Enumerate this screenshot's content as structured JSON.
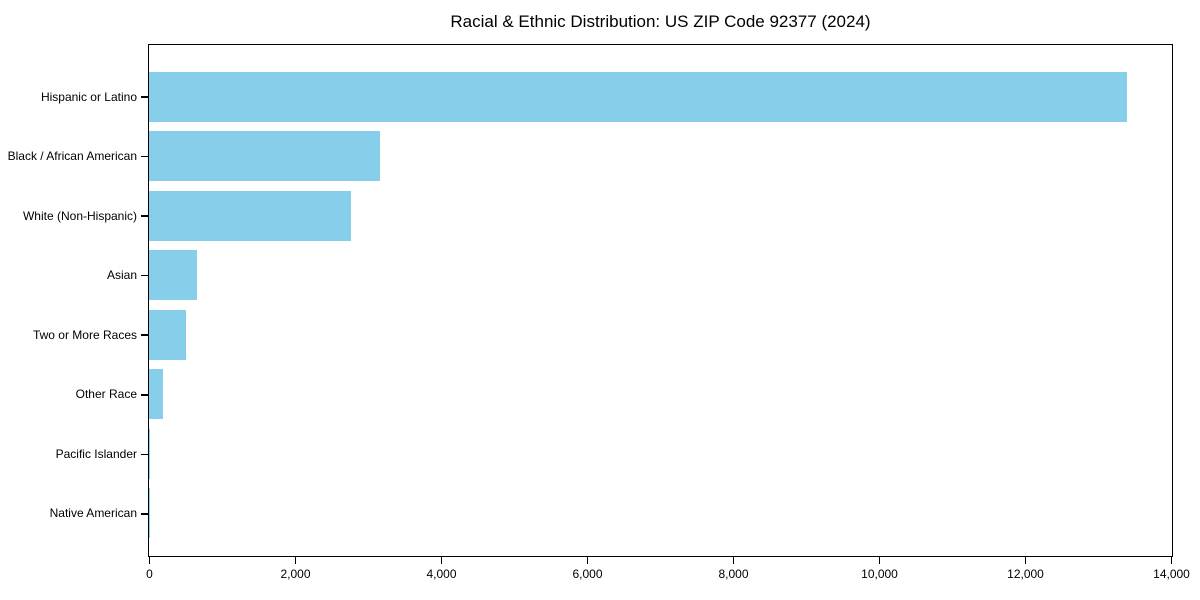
{
  "chart_data": {
    "type": "bar",
    "orientation": "horizontal",
    "title": "Racial & Ethnic Distribution: US ZIP Code 92377 (2024)",
    "categories": [
      "Hispanic or Latino",
      "Black / African American",
      "White (Non-Hispanic)",
      "Asian",
      "Two or More Races",
      "Other Race",
      "Pacific Islander",
      "Native American"
    ],
    "values": [
      13400,
      3160,
      2770,
      660,
      500,
      190,
      20,
      5
    ],
    "xlabel": "",
    "ylabel": "",
    "xlim": [
      0,
      14000
    ],
    "x_ticks": [
      0,
      2000,
      4000,
      6000,
      8000,
      10000,
      12000,
      14000
    ],
    "x_tick_labels": [
      "0",
      "2,000",
      "4,000",
      "6,000",
      "8,000",
      "10,000",
      "12,000",
      "14,000"
    ],
    "bar_color": "#87CEEB",
    "frame_color": "#000000",
    "grid": false,
    "legend": null
  }
}
